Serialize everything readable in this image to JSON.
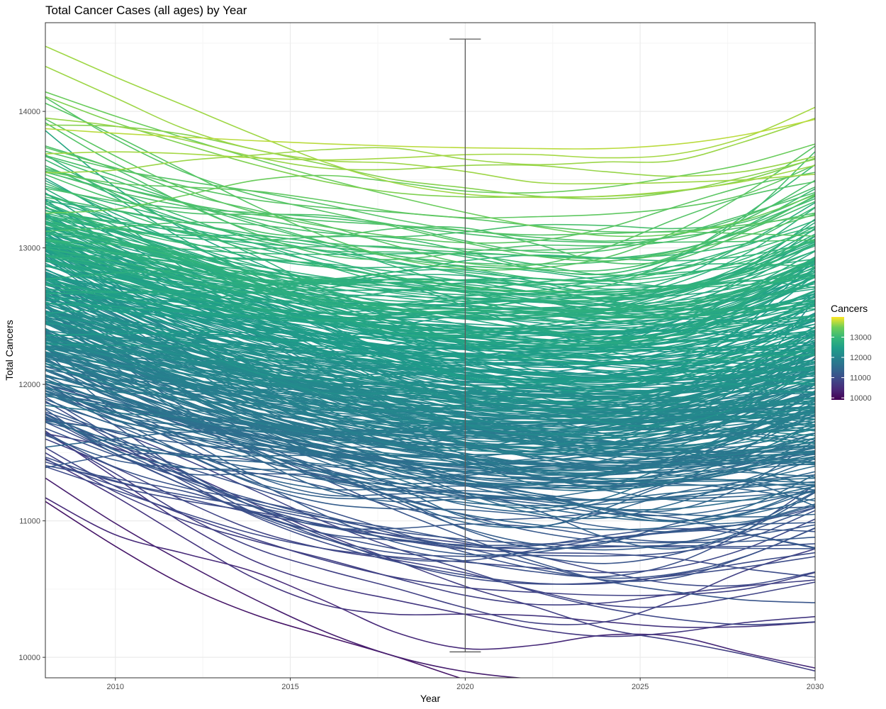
{
  "chart_data": {
    "type": "line",
    "title": "Total Cancer Cases (all ages) by Year",
    "xlabel": "Year",
    "ylabel": "Total Cancers",
    "xlim": [
      2008,
      2030
    ],
    "ylim": [
      9850,
      14650
    ],
    "x_ticks": [
      2010,
      2015,
      2020,
      2025,
      2030
    ],
    "x_tick_labels": [
      "2010",
      "2015",
      "2020",
      "2025",
      "2030"
    ],
    "y_ticks": [
      10000,
      11000,
      12000,
      13000,
      14000
    ],
    "y_tick_labels": [
      "10000",
      "11000",
      "12000",
      "13000",
      "14000"
    ],
    "grid": true,
    "series_count": 400,
    "x": [
      2008,
      2010,
      2012,
      2014,
      2016,
      2018,
      2020,
      2022,
      2024,
      2026,
      2028,
      2030
    ],
    "reference_series": [
      {
        "name": "",
        "values": [
          11640,
          11530,
          11350,
          11120,
          10900,
          10710,
          10520,
          10370,
          10210,
          10120,
          10020,
          9900
        ]
      },
      {
        "name": "",
        "values": [
          11740,
          11650,
          11450,
          11220,
          10990,
          10800,
          10640,
          10480,
          10360,
          10280,
          10240,
          10260
        ]
      },
      {
        "name": "",
        "values": [
          11390,
          11480,
          11490,
          11440,
          11320,
          11180,
          11040,
          10920,
          10850,
          10840,
          10850,
          10880
        ]
      },
      {
        "name": "",
        "values": [
          14330,
          14100,
          13870,
          13720,
          13640,
          13620,
          13560,
          13480,
          13470,
          13480,
          13500,
          13540
        ]
      },
      {
        "name": "",
        "values": [
          13550,
          13570,
          13640,
          13680,
          13720,
          13730,
          13650,
          13610,
          13630,
          13640,
          13780,
          13950
        ]
      },
      {
        "name": "",
        "values": [
          13900,
          13890,
          13830,
          13720,
          13610,
          13500,
          13440,
          13380,
          13360,
          13410,
          13520,
          13650
        ]
      },
      {
        "name": "",
        "values": [
          12000,
          11850,
          11700,
          11520,
          11300,
          11080,
          10880,
          10700,
          10560,
          10480,
          10420,
          10400
        ]
      },
      {
        "name": "",
        "values": [
          11540,
          11600,
          11650,
          11620,
          11520,
          11420,
          11300,
          11200,
          11150,
          11180,
          11250,
          11360
        ]
      }
    ],
    "error_bar": {
      "x": 2020,
      "ymin": 10040,
      "ymax": 14530
    },
    "legend": {
      "title": "Cancers",
      "position": "right",
      "ticks": [
        10000,
        11000,
        12000,
        13000
      ],
      "tick_labels": [
        "10000",
        "11000",
        "12000",
        "13000"
      ],
      "range": [
        9900,
        14000
      ],
      "colormap": "viridis"
    },
    "colors": {
      "viridis_low": "#440154",
      "viridis_mid": "#21918c",
      "viridis_high": "#fde725",
      "error_bar": "#595959",
      "grid_major": "#ebebeb",
      "grid_minor": "#f5f5f5",
      "panel_border": "#333333"
    }
  }
}
